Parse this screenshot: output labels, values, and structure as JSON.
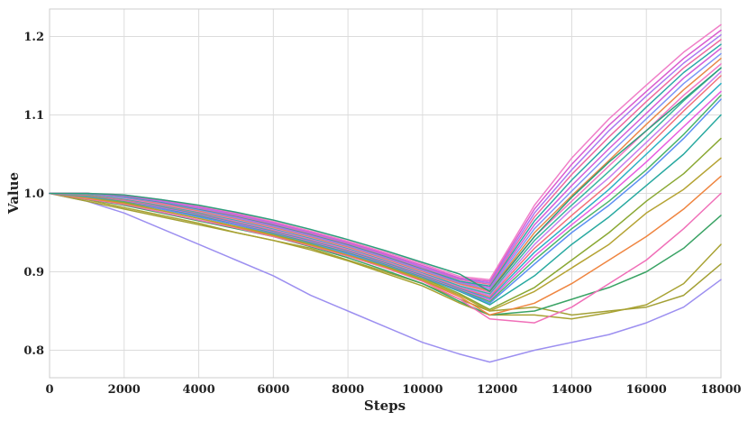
{
  "chart_data": {
    "type": "line",
    "title": "",
    "xlabel": "Steps",
    "ylabel": "Value",
    "xlim": [
      0,
      18000
    ],
    "ylim": [
      0.765,
      1.235
    ],
    "x_ticks": [
      0,
      2000,
      4000,
      6000,
      8000,
      10000,
      12000,
      14000,
      16000,
      18000
    ],
    "y_ticks": [
      0.8,
      0.9,
      1.0,
      1.1,
      1.2
    ],
    "grid": true,
    "legend": false,
    "x": [
      0,
      1000,
      2000,
      3000,
      4000,
      5000,
      6000,
      7000,
      8000,
      9000,
      10000,
      11000,
      11800,
      13000,
      14000,
      15000,
      16000,
      17000,
      18000
    ],
    "series": [
      {
        "color": "#9c8ff0",
        "values": [
          1.0,
          0.99,
          0.975,
          0.955,
          0.935,
          0.915,
          0.895,
          0.87,
          0.85,
          0.83,
          0.81,
          0.795,
          0.785,
          0.8,
          0.81,
          0.82,
          0.835,
          0.855,
          0.89
        ]
      },
      {
        "color": "#a3a035",
        "values": [
          1.0,
          0.99,
          0.98,
          0.97,
          0.96,
          0.95,
          0.94,
          0.93,
          0.915,
          0.9,
          0.885,
          0.865,
          0.85,
          0.855,
          0.845,
          0.85,
          0.855,
          0.87,
          0.91
        ]
      },
      {
        "color": "#a8a232",
        "values": [
          1.0,
          0.992,
          0.982,
          0.972,
          0.962,
          0.95,
          0.94,
          0.928,
          0.914,
          0.898,
          0.882,
          0.86,
          0.845,
          0.845,
          0.84,
          0.848,
          0.858,
          0.885,
          0.935
        ]
      },
      {
        "color": "#3aa365",
        "values": [
          1.0,
          0.993,
          0.985,
          0.975,
          0.965,
          0.955,
          0.945,
          0.932,
          0.918,
          0.902,
          0.885,
          0.862,
          0.845,
          0.85,
          0.865,
          0.88,
          0.9,
          0.93,
          0.972
        ]
      },
      {
        "color": "#f06fb8",
        "values": [
          1.0,
          0.993,
          0.986,
          0.976,
          0.966,
          0.956,
          0.945,
          0.933,
          0.92,
          0.905,
          0.888,
          0.865,
          0.84,
          0.835,
          0.855,
          0.885,
          0.915,
          0.955,
          1.0
        ]
      },
      {
        "color": "#ef8540",
        "values": [
          1.0,
          0.994,
          0.987,
          0.978,
          0.968,
          0.957,
          0.946,
          0.934,
          0.921,
          0.906,
          0.889,
          0.868,
          0.845,
          0.86,
          0.885,
          0.915,
          0.945,
          0.98,
          1.022
        ]
      },
      {
        "color": "#b5a333",
        "values": [
          1.0,
          0.995,
          0.988,
          0.978,
          0.968,
          0.958,
          0.947,
          0.935,
          0.922,
          0.907,
          0.89,
          0.87,
          0.85,
          0.875,
          0.905,
          0.935,
          0.975,
          1.005,
          1.045
        ]
      },
      {
        "color": "#8aa833",
        "values": [
          1.0,
          0.996,
          0.989,
          0.98,
          0.97,
          0.96,
          0.948,
          0.936,
          0.923,
          0.908,
          0.892,
          0.872,
          0.852,
          0.88,
          0.915,
          0.95,
          0.99,
          1.025,
          1.07
        ]
      },
      {
        "color": "#28a9a0",
        "values": [
          1.0,
          0.997,
          0.99,
          0.981,
          0.971,
          0.961,
          0.95,
          0.937,
          0.924,
          0.909,
          0.893,
          0.875,
          0.858,
          0.895,
          0.935,
          0.97,
          1.01,
          1.05,
          1.1
        ]
      },
      {
        "color": "#5b8ff2",
        "values": [
          1.0,
          0.996,
          0.99,
          0.98,
          0.97,
          0.96,
          0.949,
          0.937,
          0.923,
          0.909,
          0.893,
          0.876,
          0.86,
          0.91,
          0.95,
          0.985,
          1.025,
          1.07,
          1.12
        ]
      },
      {
        "color": "#4db56a",
        "values": [
          1.0,
          0.997,
          0.99,
          0.982,
          0.972,
          0.962,
          0.95,
          0.938,
          0.925,
          0.91,
          0.894,
          0.877,
          0.862,
          0.915,
          0.955,
          0.99,
          1.03,
          1.075,
          1.125
        ]
      },
      {
        "color": "#e75de0",
        "values": [
          1.0,
          0.998,
          0.991,
          0.982,
          0.973,
          0.962,
          0.951,
          0.939,
          0.926,
          0.911,
          0.895,
          0.878,
          0.864,
          0.92,
          0.96,
          0.998,
          1.04,
          1.085,
          1.13
        ]
      },
      {
        "color": "#2bb0c4",
        "values": [
          1.0,
          0.998,
          0.992,
          0.983,
          0.974,
          0.963,
          0.952,
          0.94,
          0.927,
          0.912,
          0.896,
          0.879,
          0.866,
          0.925,
          0.965,
          1.005,
          1.05,
          1.095,
          1.14
        ]
      },
      {
        "color": "#f2707a",
        "values": [
          1.0,
          0.998,
          0.992,
          0.984,
          0.975,
          0.964,
          0.953,
          0.941,
          0.928,
          0.913,
          0.897,
          0.88,
          0.868,
          0.93,
          0.972,
          1.012,
          1.058,
          1.105,
          1.15
        ]
      },
      {
        "color": "#c77ff0",
        "values": [
          1.0,
          0.999,
          0.993,
          0.985,
          0.976,
          0.965,
          0.954,
          0.942,
          0.929,
          0.914,
          0.898,
          0.881,
          0.87,
          0.935,
          0.98,
          1.02,
          1.065,
          1.11,
          1.155
        ]
      },
      {
        "color": "#3bb5a0",
        "values": [
          1.0,
          0.999,
          0.993,
          0.985,
          0.976,
          0.966,
          0.955,
          0.943,
          0.93,
          0.915,
          0.899,
          0.882,
          0.872,
          0.94,
          0.985,
          1.028,
          1.072,
          1.118,
          1.16
        ]
      },
      {
        "color": "#f279c5",
        "values": [
          1.0,
          1.0,
          0.994,
          0.986,
          0.977,
          0.967,
          0.956,
          0.944,
          0.931,
          0.916,
          0.9,
          0.884,
          0.874,
          0.945,
          0.99,
          1.035,
          1.08,
          1.125,
          1.165
        ]
      },
      {
        "color": "#e8884a",
        "values": [
          1.0,
          1.0,
          0.995,
          0.987,
          0.978,
          0.968,
          0.957,
          0.945,
          0.932,
          0.917,
          0.901,
          0.885,
          0.876,
          0.95,
          0.997,
          1.042,
          1.088,
          1.132,
          1.172
        ]
      },
      {
        "color": "#7c97f5",
        "values": [
          1.0,
          1.0,
          0.995,
          0.988,
          0.979,
          0.969,
          0.958,
          0.946,
          0.933,
          0.918,
          0.902,
          0.886,
          0.878,
          0.955,
          1.003,
          1.05,
          1.095,
          1.14,
          1.178
        ]
      },
      {
        "color": "#d45fd8",
        "values": [
          1.0,
          1.0,
          0.996,
          0.988,
          0.98,
          0.97,
          0.959,
          0.947,
          0.934,
          0.919,
          0.903,
          0.887,
          0.88,
          0.96,
          1.01,
          1.057,
          1.102,
          1.147,
          1.185
        ]
      },
      {
        "color": "#2aa8a8",
        "values": [
          1.0,
          1.0,
          0.996,
          0.989,
          0.98,
          0.971,
          0.96,
          0.948,
          0.935,
          0.92,
          0.904,
          0.888,
          0.882,
          0.965,
          1.017,
          1.064,
          1.11,
          1.154,
          1.19
        ]
      },
      {
        "color": "#ee6aa0",
        "values": [
          1.0,
          1.0,
          0.997,
          0.99,
          0.981,
          0.972,
          0.961,
          0.949,
          0.936,
          0.921,
          0.905,
          0.89,
          0.884,
          0.97,
          1.024,
          1.072,
          1.117,
          1.16,
          1.196
        ]
      },
      {
        "color": "#a978f0",
        "values": [
          1.0,
          1.0,
          0.997,
          0.99,
          0.982,
          0.973,
          0.962,
          0.95,
          0.937,
          0.922,
          0.906,
          0.891,
          0.886,
          0.975,
          1.03,
          1.08,
          1.124,
          1.166,
          1.202
        ]
      },
      {
        "color": "#d85bd0",
        "values": [
          1.0,
          1.0,
          0.997,
          0.991,
          0.983,
          0.974,
          0.963,
          0.951,
          0.938,
          0.923,
          0.908,
          0.892,
          0.888,
          0.98,
          1.037,
          1.087,
          1.13,
          1.172,
          1.208
        ]
      },
      {
        "color": "#f07fc8",
        "values": [
          1.0,
          1.0,
          0.998,
          0.992,
          0.984,
          0.975,
          0.964,
          0.952,
          0.939,
          0.925,
          0.91,
          0.894,
          0.89,
          0.985,
          1.045,
          1.095,
          1.138,
          1.18,
          1.215
        ]
      },
      {
        "color": "#2e9e7c",
        "values": [
          1.0,
          1.0,
          0.998,
          0.992,
          0.985,
          0.976,
          0.966,
          0.954,
          0.941,
          0.927,
          0.912,
          0.897,
          0.875,
          0.945,
          0.995,
          1.04,
          1.08,
          1.12,
          1.16
        ]
      }
    ]
  }
}
